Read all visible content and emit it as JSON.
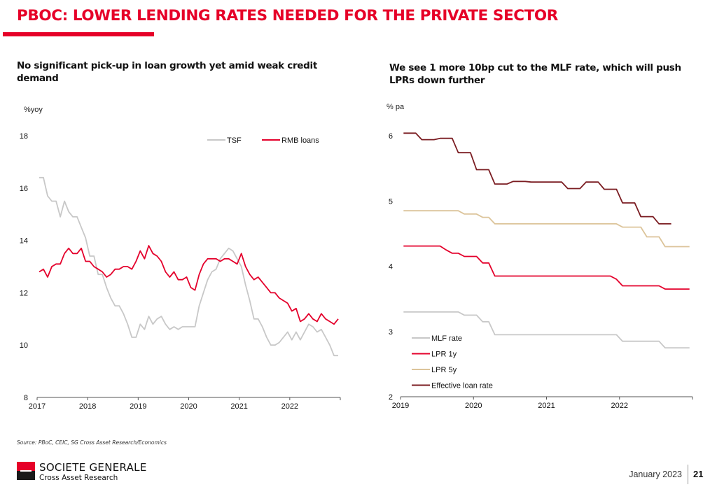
{
  "page": {
    "title": "PBOC: LOWER LENDING RATES NEEDED FOR THE PRIVATE SECTOR",
    "source": "Source: PBoC, CEIC, SG Cross Asset Research/Economics",
    "brand": "SOCIETE GENERALE",
    "brand_sub": "Cross Asset Research",
    "date": "January 2023",
    "page_number": "21",
    "colors": {
      "accent": "#e60028",
      "tsf": "#c8c8c8",
      "rmb": "#e4002b",
      "mlf": "#c8c8c8",
      "lpr1y": "#e4002b",
      "lpr5y": "#dcc49a",
      "effective": "#7b1d22"
    }
  },
  "chart_data": [
    {
      "type": "line",
      "title": "No significant pick-up in loan growth yet amid weak credit demand",
      "ylabel": "%yoy",
      "xlabel": "",
      "ylim": [
        8,
        18
      ],
      "yticks": [
        "8",
        "10",
        "12",
        "14",
        "16",
        "18"
      ],
      "xlim": [
        2017.0,
        2023.0
      ],
      "xticks": [
        "2017",
        "2018",
        "2019",
        "2020",
        "2021",
        "2022"
      ],
      "grid": false,
      "legend": "top-right",
      "x_start": 2017.0,
      "x_step_months": 1,
      "series": [
        {
          "name": "TSF",
          "color": "#c8c8c8",
          "values": [
            16.4,
            16.4,
            15.7,
            15.5,
            15.5,
            14.9,
            15.5,
            15.1,
            14.9,
            14.9,
            14.5,
            14.1,
            13.4,
            13.4,
            12.7,
            12.7,
            12.2,
            11.8,
            11.5,
            11.5,
            11.2,
            10.8,
            10.3,
            10.3,
            10.8,
            10.6,
            11.1,
            10.8,
            11.0,
            11.1,
            10.8,
            10.6,
            10.7,
            10.6,
            10.7,
            10.7,
            10.7,
            10.7,
            11.5,
            12.0,
            12.5,
            12.8,
            12.9,
            13.3,
            13.5,
            13.7,
            13.6,
            13.3,
            13.0,
            12.3,
            11.7,
            11.0,
            11.0,
            10.7,
            10.3,
            10.0,
            10.0,
            10.1,
            10.3,
            10.5,
            10.2,
            10.5,
            10.2,
            10.5,
            10.8,
            10.7,
            10.5,
            10.6,
            10.3,
            10.0,
            9.6,
            9.6
          ]
        },
        {
          "name": "RMB loans",
          "color": "#e4002b",
          "values": [
            12.8,
            12.9,
            12.6,
            13.0,
            13.1,
            13.1,
            13.5,
            13.7,
            13.5,
            13.5,
            13.7,
            13.2,
            13.2,
            13.0,
            12.9,
            12.8,
            12.6,
            12.7,
            12.9,
            12.9,
            13.0,
            13.0,
            12.9,
            13.2,
            13.6,
            13.3,
            13.8,
            13.5,
            13.4,
            13.2,
            12.8,
            12.6,
            12.8,
            12.5,
            12.5,
            12.6,
            12.2,
            12.1,
            12.7,
            13.1,
            13.3,
            13.3,
            13.3,
            13.2,
            13.3,
            13.3,
            13.2,
            13.1,
            13.5,
            13.0,
            12.7,
            12.5,
            12.6,
            12.4,
            12.2,
            12.0,
            12.0,
            11.8,
            11.7,
            11.6,
            11.3,
            11.4,
            10.9,
            11.0,
            11.2,
            11.0,
            10.9,
            11.2,
            11.0,
            10.9,
            10.8,
            11.0
          ]
        }
      ]
    },
    {
      "type": "line",
      "title": "We see 1 more 10bp cut to the MLF rate, which will push LPRs down further",
      "ylabel": "% pa",
      "xlabel": "",
      "ylim": [
        2,
        6
      ],
      "yticks": [
        "2",
        "3",
        "4",
        "5",
        "6"
      ],
      "xlim": [
        2019.0,
        2023.0
      ],
      "xticks": [
        "2019",
        "2020",
        "2021",
        "2022"
      ],
      "grid": false,
      "legend": "bottom-left",
      "x_start": 2019.0,
      "x_step_months": 1,
      "series": [
        {
          "name": "MLF rate",
          "color": "#c8c8c8",
          "values": [
            3.3,
            3.3,
            3.3,
            3.3,
            3.3,
            3.3,
            3.3,
            3.3,
            3.3,
            3.3,
            3.25,
            3.25,
            3.25,
            3.15,
            3.15,
            2.95,
            2.95,
            2.95,
            2.95,
            2.95,
            2.95,
            2.95,
            2.95,
            2.95,
            2.95,
            2.95,
            2.95,
            2.95,
            2.95,
            2.95,
            2.95,
            2.95,
            2.95,
            2.95,
            2.95,
            2.95,
            2.85,
            2.85,
            2.85,
            2.85,
            2.85,
            2.85,
            2.85,
            2.75,
            2.75,
            2.75,
            2.75,
            2.75
          ]
        },
        {
          "name": "LPR 1y",
          "color": "#e4002b",
          "values": [
            4.31,
            4.31,
            4.31,
            4.31,
            4.31,
            4.31,
            4.31,
            4.25,
            4.2,
            4.2,
            4.15,
            4.15,
            4.15,
            4.05,
            4.05,
            3.85,
            3.85,
            3.85,
            3.85,
            3.85,
            3.85,
            3.85,
            3.85,
            3.85,
            3.85,
            3.85,
            3.85,
            3.85,
            3.85,
            3.85,
            3.85,
            3.85,
            3.85,
            3.85,
            3.85,
            3.8,
            3.7,
            3.7,
            3.7,
            3.7,
            3.7,
            3.7,
            3.7,
            3.65,
            3.65,
            3.65,
            3.65,
            3.65
          ]
        },
        {
          "name": "LPR 5y",
          "color": "#dcc49a",
          "values": [
            4.85,
            4.85,
            4.85,
            4.85,
            4.85,
            4.85,
            4.85,
            4.85,
            4.85,
            4.85,
            4.8,
            4.8,
            4.8,
            4.75,
            4.75,
            4.65,
            4.65,
            4.65,
            4.65,
            4.65,
            4.65,
            4.65,
            4.65,
            4.65,
            4.65,
            4.65,
            4.65,
            4.65,
            4.65,
            4.65,
            4.65,
            4.65,
            4.65,
            4.65,
            4.65,
            4.65,
            4.6,
            4.6,
            4.6,
            4.6,
            4.45,
            4.45,
            4.45,
            4.3,
            4.3,
            4.3,
            4.3,
            4.3
          ]
        },
        {
          "name": "Effective loan rate",
          "color": "#7b1d22",
          "values": [
            6.04,
            6.04,
            6.04,
            5.94,
            5.94,
            5.94,
            5.96,
            5.96,
            5.96,
            5.74,
            5.74,
            5.74,
            5.48,
            5.48,
            5.48,
            5.26,
            5.26,
            5.26,
            5.3,
            5.3,
            5.3,
            5.29,
            5.29,
            5.29,
            5.29,
            5.29,
            5.29,
            5.19,
            5.19,
            5.19,
            5.29,
            5.29,
            5.29,
            5.18,
            5.18,
            5.18,
            4.97,
            4.97,
            4.97,
            4.76,
            4.76,
            4.76,
            4.65,
            4.65,
            4.65
          ]
        }
      ]
    }
  ]
}
